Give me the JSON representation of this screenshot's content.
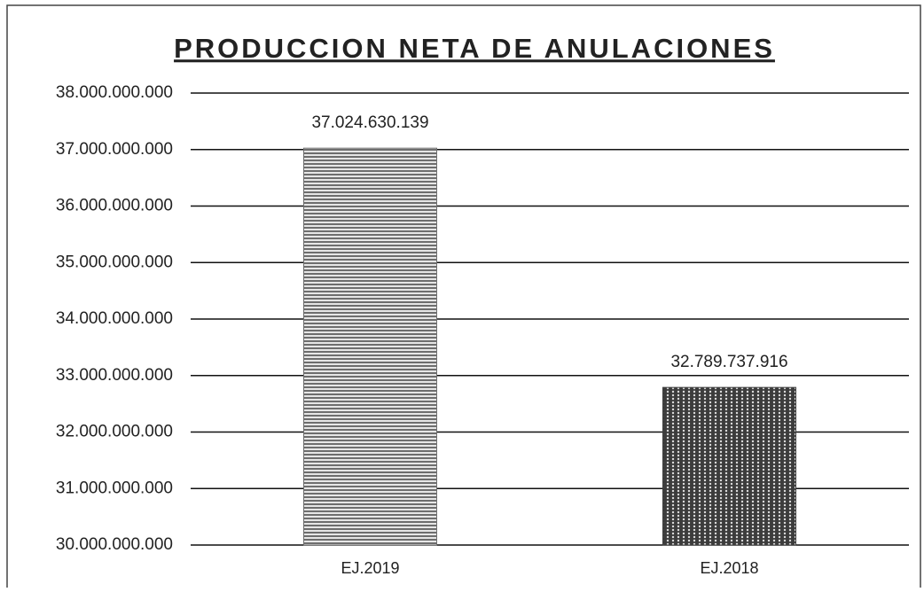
{
  "chart_data": {
    "type": "bar",
    "title": "PRODUCCION NETA DE ANULACIONES",
    "categories": [
      "EJ.2019",
      "EJ.2018"
    ],
    "values": [
      37024630139,
      32789737916
    ],
    "value_labels": [
      "37.024.630.139",
      "32.789.737.916"
    ],
    "colors": [
      "#6e6e6e",
      "#3c3c3c"
    ],
    "ylim": [
      30000000000,
      38000000000
    ],
    "yticks": [
      {
        "value": 30000000000,
        "label": "30.000.000.000"
      },
      {
        "value": 31000000000,
        "label": "31.000.000.000"
      },
      {
        "value": 32000000000,
        "label": "32.000.000.000"
      },
      {
        "value": 33000000000,
        "label": "33.000.000.000"
      },
      {
        "value": 34000000000,
        "label": "34.000.000.000"
      },
      {
        "value": 35000000000,
        "label": "35.000.000.000"
      },
      {
        "value": 36000000000,
        "label": "36.000.000.000"
      },
      {
        "value": 37000000000,
        "label": "37.000.000.000"
      },
      {
        "value": 38000000000,
        "label": "38.000.000.000"
      }
    ],
    "grid": true
  }
}
